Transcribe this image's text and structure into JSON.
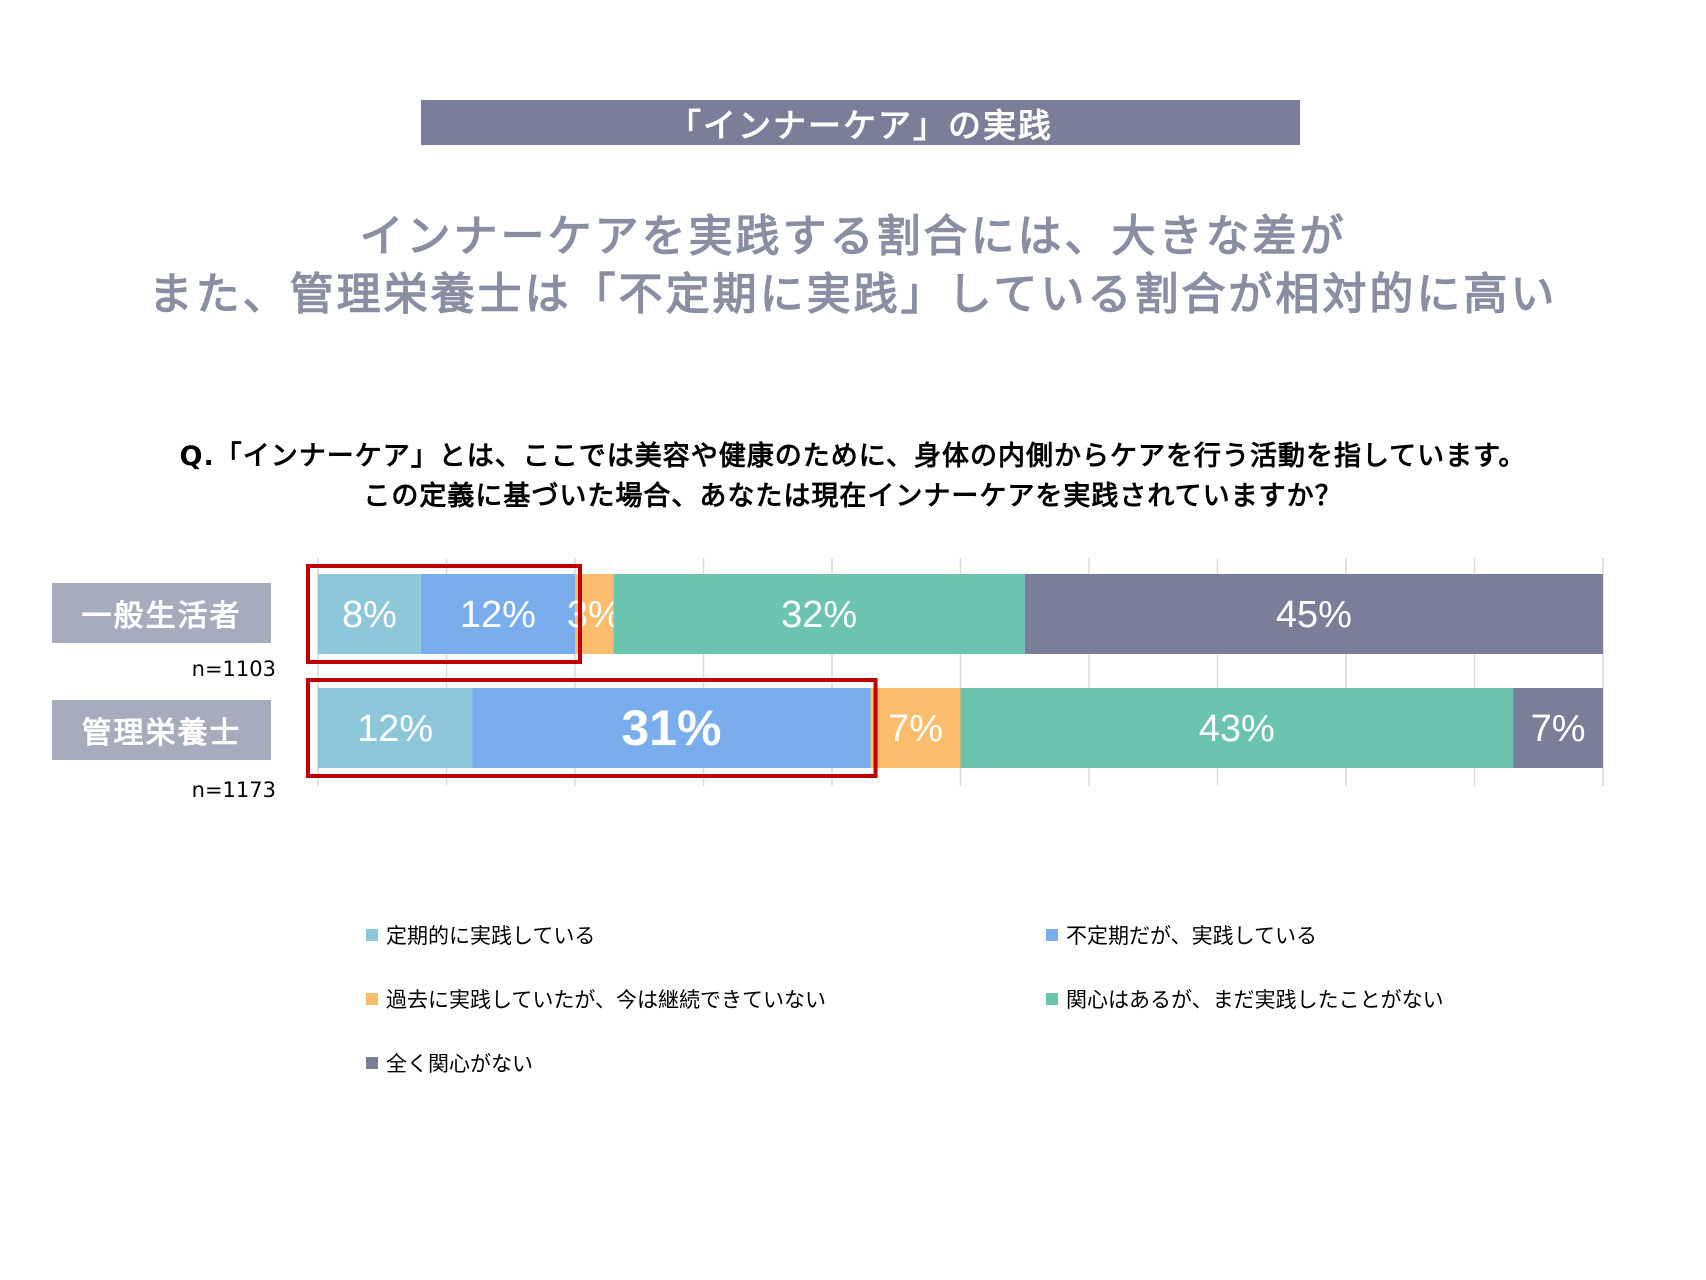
{
  "header": {
    "title": "「インナーケア」の実践"
  },
  "headline": {
    "line1": "インナーケアを実践する割合には、大きな差が",
    "line2": "また、管理栄養士は「不定期に実践」している割合が相対的に高い"
  },
  "question": {
    "line1": "Q.「インナーケア」とは、ここでは美容や健康のために、身体の内側からケアを行う活動を指しています。",
    "line2": "この定義に基づいた場合、あなたは現在インナーケアを実践されていますか？"
  },
  "chart_data": {
    "type": "bar",
    "orientation": "horizontal-stacked-100",
    "categories": [
      "一般生活者",
      "管理栄養士"
    ],
    "sample_sizes": [
      "n=1103",
      "n=1173"
    ],
    "series": [
      {
        "name": "定期的に実践している",
        "values": [
          8,
          12
        ],
        "labels": [
          "8%",
          "12%"
        ],
        "color": "#8dc8da"
      },
      {
        "name": "不定期だが、実践している",
        "values": [
          12,
          31
        ],
        "labels": [
          "12%",
          "31%"
        ],
        "color": "#79aded"
      },
      {
        "name": "過去に実践していたが、今は継続できていない",
        "values": [
          3,
          7
        ],
        "labels": [
          "3%",
          "7%"
        ],
        "color": "#fbbd6d"
      },
      {
        "name": "関心はあるが、まだ実践したことがない",
        "values": [
          32,
          43
        ],
        "labels": [
          "32%",
          "43%"
        ],
        "color": "#6ac4ae"
      },
      {
        "name": "全く関心がない",
        "values": [
          45,
          7
        ],
        "labels": [
          "45%",
          "7%"
        ],
        "color": "#7b7e98"
      }
    ],
    "xlim": [
      0,
      100
    ],
    "grid": true,
    "highlight_color": "#c00000",
    "legend_position": "bottom"
  }
}
